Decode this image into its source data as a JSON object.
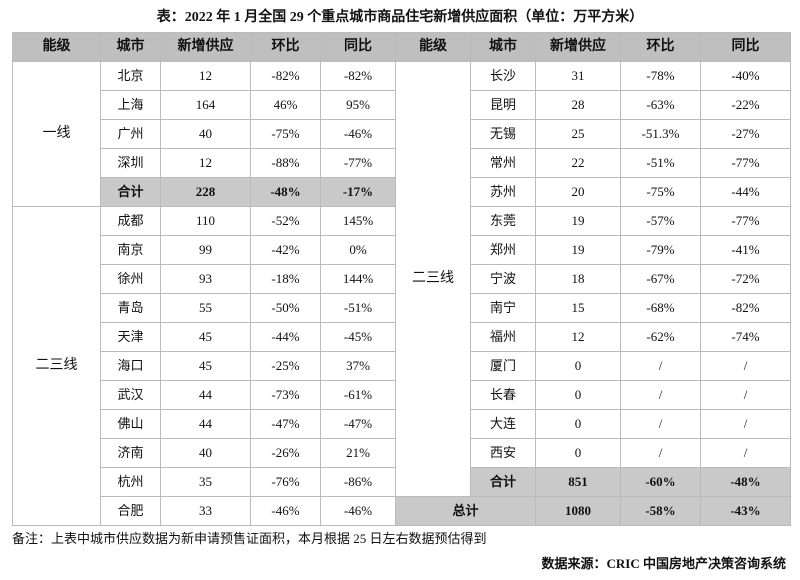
{
  "title": "表：2022 年 1 月全国 29 个重点城市商品住宅新增供应面积（单位：万平方米）",
  "headers": [
    "能级",
    "城市",
    "新增供应",
    "环比",
    "同比"
  ],
  "left": {
    "groups": [
      {
        "tier": "一线",
        "rows": [
          {
            "city": "北京",
            "supply": 12,
            "mom": "-82%",
            "yoy": "-82%"
          },
          {
            "city": "上海",
            "supply": 164,
            "mom": "46%",
            "yoy": "95%"
          },
          {
            "city": "广州",
            "supply": 40,
            "mom": "-75%",
            "yoy": "-46%"
          },
          {
            "city": "深圳",
            "supply": 12,
            "mom": "-88%",
            "yoy": "-77%"
          }
        ],
        "total": {
          "label": "合计",
          "supply": 228,
          "mom": "-48%",
          "yoy": "-17%"
        }
      },
      {
        "tier": "二三线",
        "rows": [
          {
            "city": "成都",
            "supply": 110,
            "mom": "-52%",
            "yoy": "145%"
          },
          {
            "city": "南京",
            "supply": 99,
            "mom": "-42%",
            "yoy": "0%"
          },
          {
            "city": "徐州",
            "supply": 93,
            "mom": "-18%",
            "yoy": "144%"
          },
          {
            "city": "青岛",
            "supply": 55,
            "mom": "-50%",
            "yoy": "-51%"
          },
          {
            "city": "天津",
            "supply": 45,
            "mom": "-44%",
            "yoy": "-45%"
          },
          {
            "city": "海口",
            "supply": 45,
            "mom": "-25%",
            "yoy": "37%"
          },
          {
            "city": "武汉",
            "supply": 44,
            "mom": "-73%",
            "yoy": "-61%"
          },
          {
            "city": "佛山",
            "supply": 44,
            "mom": "-47%",
            "yoy": "-47%"
          },
          {
            "city": "济南",
            "supply": 40,
            "mom": "-26%",
            "yoy": "21%"
          },
          {
            "city": "杭州",
            "supply": 35,
            "mom": "-76%",
            "yoy": "-86%"
          },
          {
            "city": "合肥",
            "supply": 33,
            "mom": "-46%",
            "yoy": "-46%"
          }
        ]
      }
    ]
  },
  "right": {
    "tier": "二三线",
    "rows": [
      {
        "city": "长沙",
        "supply": 31,
        "mom": "-78%",
        "yoy": "-40%"
      },
      {
        "city": "昆明",
        "supply": 28,
        "mom": "-63%",
        "yoy": "-22%"
      },
      {
        "city": "无锡",
        "supply": 25,
        "mom": "-51.3%",
        "yoy": "-27%"
      },
      {
        "city": "常州",
        "supply": 22,
        "mom": "-51%",
        "yoy": "-77%"
      },
      {
        "city": "苏州",
        "supply": 20,
        "mom": "-75%",
        "yoy": "-44%"
      },
      {
        "city": "东莞",
        "supply": 19,
        "mom": "-57%",
        "yoy": "-77%"
      },
      {
        "city": "郑州",
        "supply": 19,
        "mom": "-79%",
        "yoy": "-41%"
      },
      {
        "city": "宁波",
        "supply": 18,
        "mom": "-67%",
        "yoy": "-72%"
      },
      {
        "city": "南宁",
        "supply": 15,
        "mom": "-68%",
        "yoy": "-82%"
      },
      {
        "city": "福州",
        "supply": 12,
        "mom": "-62%",
        "yoy": "-74%"
      },
      {
        "city": "厦门",
        "supply": 0,
        "mom": "/",
        "yoy": "/"
      },
      {
        "city": "长春",
        "supply": 0,
        "mom": "/",
        "yoy": "/"
      },
      {
        "city": "大连",
        "supply": 0,
        "mom": "/",
        "yoy": "/"
      },
      {
        "city": "西安",
        "supply": 0,
        "mom": "/",
        "yoy": "/"
      }
    ],
    "total": {
      "label": "合计",
      "supply": 851,
      "mom": "-60%",
      "yoy": "-48%"
    },
    "grand_total": {
      "label": "总计",
      "supply": 1080,
      "mom": "-58%",
      "yoy": "-43%"
    }
  },
  "note": "备注：上表中城市供应数据为新申请预售证面积，本月根据 25 日左右数据预估得到",
  "source": "数据来源：CRIC 中国房地产决策咨询系统"
}
